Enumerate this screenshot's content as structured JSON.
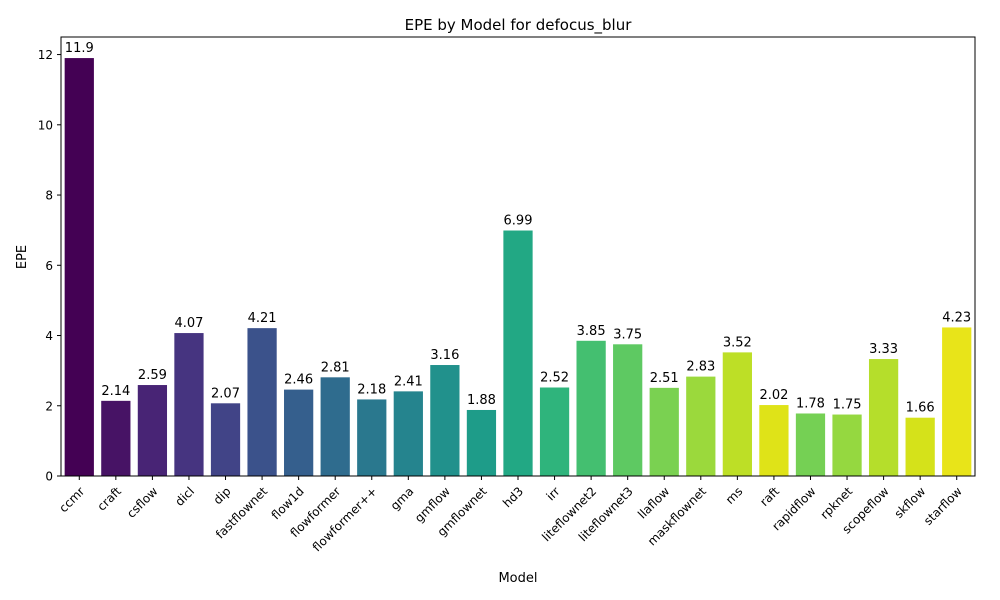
{
  "chart_data": {
    "type": "bar",
    "title": "EPE by Model for defocus_blur",
    "xlabel": "Model",
    "ylabel": "EPE",
    "ylim": [
      0,
      12.5
    ],
    "yticks": [
      0,
      2,
      4,
      6,
      8,
      10,
      12
    ],
    "grid": false,
    "legend": "none",
    "palette": "viridis",
    "categories": [
      "ccmr",
      "craft",
      "csflow",
      "dicl",
      "dip",
      "fastflownet",
      "flow1d",
      "flowformer",
      "flowformer++",
      "gma",
      "gmflow",
      "gmflownet",
      "hd3",
      "irr",
      "liteflownet2",
      "liteflownet3",
      "llaflow",
      "maskflownet",
      "ms",
      "raft",
      "rapidflow",
      "rpknet",
      "scopeflow",
      "skflow",
      "starflow"
    ],
    "values": [
      11.9,
      2.14,
      2.59,
      4.07,
      2.07,
      4.21,
      2.46,
      2.81,
      2.18,
      2.41,
      3.16,
      1.88,
      6.99,
      2.52,
      3.85,
      3.75,
      2.51,
      2.83,
      3.52,
      2.02,
      1.78,
      1.75,
      3.33,
      1.66,
      4.23
    ],
    "value_labels": [
      "11.9",
      "2.14",
      "2.59",
      "4.07",
      "2.07",
      "4.21",
      "2.46",
      "2.81",
      "2.18",
      "2.41",
      "3.16",
      "1.88",
      "6.99",
      "2.52",
      "3.85",
      "3.75",
      "2.51",
      "2.83",
      "3.52",
      "2.02",
      "1.78",
      "1.75",
      "3.33",
      "1.66",
      "4.23"
    ],
    "colors": [
      "#440154",
      "#471365",
      "#482475",
      "#463480",
      "#414487",
      "#3b528b",
      "#355f8d",
      "#2f6c8e",
      "#2a788e",
      "#25848e",
      "#21918c",
      "#1e9c89",
      "#22a884",
      "#2fb47c",
      "#44bf70",
      "#5ec962",
      "#7ad151",
      "#9bd93c",
      "#bddf26",
      "#dfe318",
      "#75d054",
      "#95d840",
      "#b5de2b",
      "#d5e21a",
      "#e8e419"
    ]
  }
}
